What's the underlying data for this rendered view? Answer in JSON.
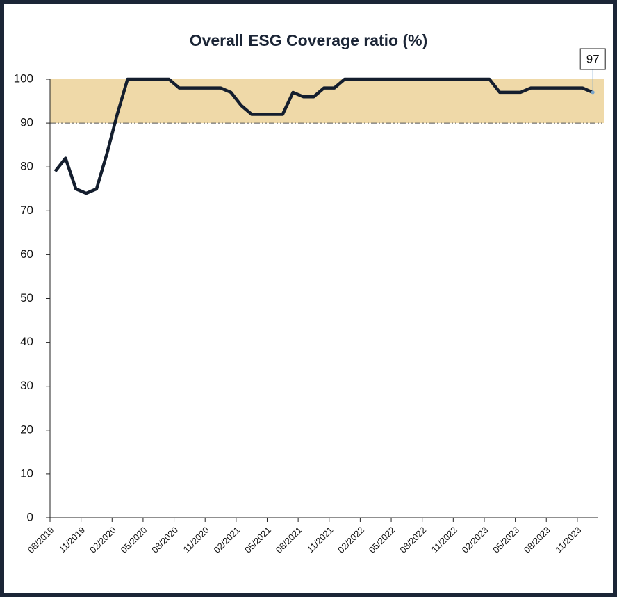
{
  "chart_data": {
    "type": "line",
    "title": "Overall ESG Coverage ratio (%)",
    "categories": [
      "08/2019",
      null,
      null,
      "11/2019",
      null,
      null,
      "02/2020",
      null,
      null,
      "05/2020",
      null,
      null,
      "08/2020",
      null,
      null,
      "11/2020",
      null,
      null,
      "02/2021",
      null,
      null,
      "05/2021",
      null,
      null,
      "08/2021",
      null,
      null,
      "11/2021",
      null,
      null,
      "02/2022",
      null,
      null,
      "05/2022",
      null,
      null,
      "08/2022",
      null,
      null,
      "11/2022",
      null,
      null,
      "02/2023",
      null,
      null,
      "05/2023",
      null,
      null,
      "08/2023",
      null,
      null,
      "11/2023",
      null
    ],
    "values": [
      79,
      82,
      75,
      74,
      75,
      83,
      92,
      100,
      100,
      100,
      100,
      100,
      98,
      98,
      98,
      98,
      98,
      97,
      94,
      92,
      92,
      92,
      92,
      97,
      96,
      96,
      98,
      98,
      100,
      100,
      100,
      100,
      100,
      100,
      100,
      100,
      100,
      100,
      100,
      100,
      100,
      100,
      100,
      97,
      97,
      97,
      98,
      98,
      98,
      98,
      98,
      98,
      97
    ],
    "color": "#141e2e",
    "ylim": [
      0,
      100
    ],
    "yticks": [
      0,
      10,
      20,
      30,
      40,
      50,
      60,
      70,
      80,
      90,
      100
    ],
    "target_band": [
      90,
      100
    ],
    "band_color": "#efd9a8",
    "annotation": "97"
  }
}
